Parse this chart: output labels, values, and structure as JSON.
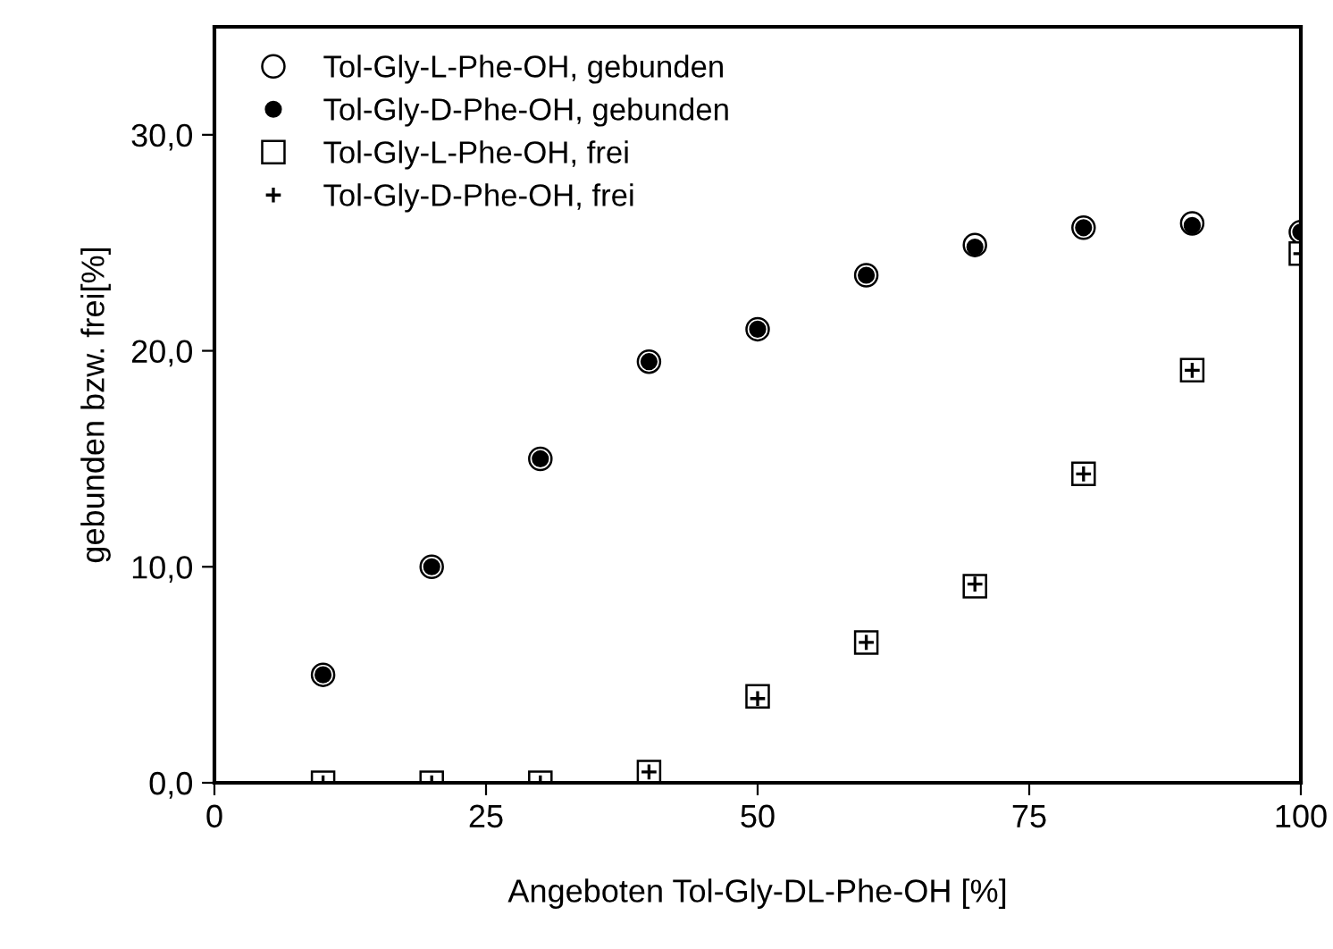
{
  "chart_data": {
    "type": "scatter",
    "xlabel": "Angeboten Tol-Gly-DL-Phe-OH [%]",
    "ylabel": "gebunden bzw. frei[%]",
    "xlim": [
      0,
      100
    ],
    "xticks": [
      0,
      25,
      50,
      75,
      100
    ],
    "ylim": [
      0,
      35
    ],
    "yticks": [
      {
        "value": 0,
        "label": "0,0"
      },
      {
        "value": 10,
        "label": "10,0"
      },
      {
        "value": 20,
        "label": "20,0"
      },
      {
        "value": 30,
        "label": "30,0"
      }
    ],
    "grid": false,
    "legend": "top left",
    "x": [
      10,
      20,
      30,
      40,
      50,
      60,
      70,
      80,
      90,
      100
    ],
    "series": [
      {
        "name": "Tol-Gly-L-Phe-OH, gebunden",
        "color": "#ffffff",
        "marker": "circle",
        "values": [
          5.0,
          10.0,
          15.0,
          19.5,
          21.0,
          23.5,
          24.9,
          25.7,
          25.9,
          25.5
        ]
      },
      {
        "name": "Tol-Gly-D-Phe-OH, gebunden",
        "color": "#000000",
        "marker": "circle",
        "values": [
          5.0,
          10.0,
          15.0,
          19.5,
          21.0,
          23.5,
          24.8,
          25.7,
          25.8,
          25.5
        ]
      },
      {
        "name": "Tol-Gly-L-Phe-OH, frei",
        "color": "#ffffff",
        "marker": "square",
        "values": [
          0.0,
          0.0,
          0.0,
          0.5,
          4.0,
          6.5,
          9.1,
          14.3,
          19.1,
          24.5
        ]
      },
      {
        "name": "Tol-Gly-D-Phe-OH, frei",
        "color": "#000000",
        "marker": "cross",
        "values": [
          0.0,
          0.0,
          0.0,
          0.5,
          3.9,
          6.5,
          9.2,
          14.3,
          19.1,
          24.5
        ]
      }
    ]
  }
}
